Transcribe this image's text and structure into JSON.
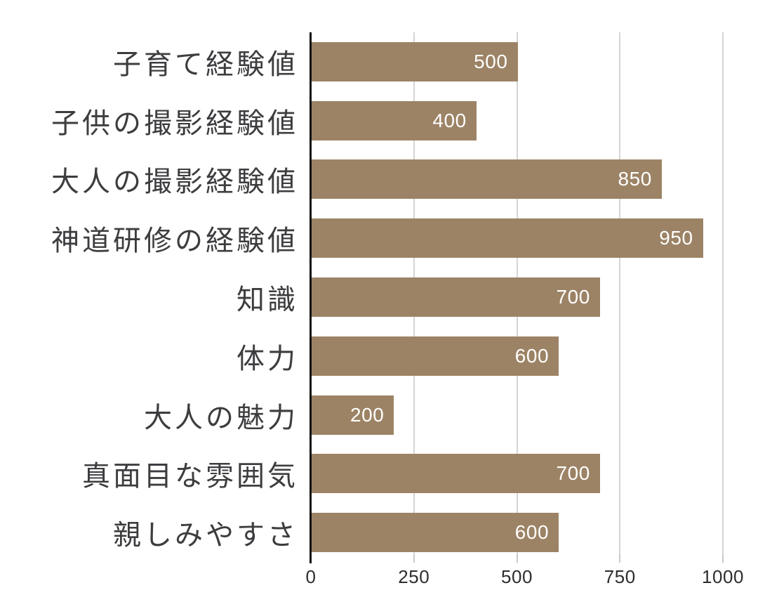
{
  "chart_data": {
    "type": "bar",
    "orientation": "horizontal",
    "title": "",
    "xlabel": "",
    "ylabel": "",
    "categories": [
      "子育て経験値",
      "子供の撮影経験値",
      "大人の撮影経験値",
      "神道研修の経験値",
      "知識",
      "体力",
      "大人の魅力",
      "真面目な雰囲気",
      "親しみやすさ"
    ],
    "values": [
      500,
      400,
      850,
      950,
      700,
      600,
      200,
      700,
      600
    ],
    "value_labels": [
      "500",
      "400",
      "850",
      "950",
      "700",
      "600",
      "200",
      "700",
      "600"
    ],
    "xlim": [
      0,
      1000
    ],
    "x_ticks": [
      0,
      250,
      500,
      750,
      1000
    ],
    "x_tick_labels": [
      "0",
      "250",
      "500",
      "750",
      "1000"
    ],
    "grid": true,
    "legend": "none",
    "colors": {
      "bar": "#9c8365",
      "value_text": "#ffffff",
      "category_text": "#3d3d40",
      "tick_text": "#2d2d2d",
      "gridline": "#d5d5d5",
      "tick_mark": "#c9c9c9",
      "axis_spine": "#111111",
      "background": "#ffffff"
    }
  }
}
